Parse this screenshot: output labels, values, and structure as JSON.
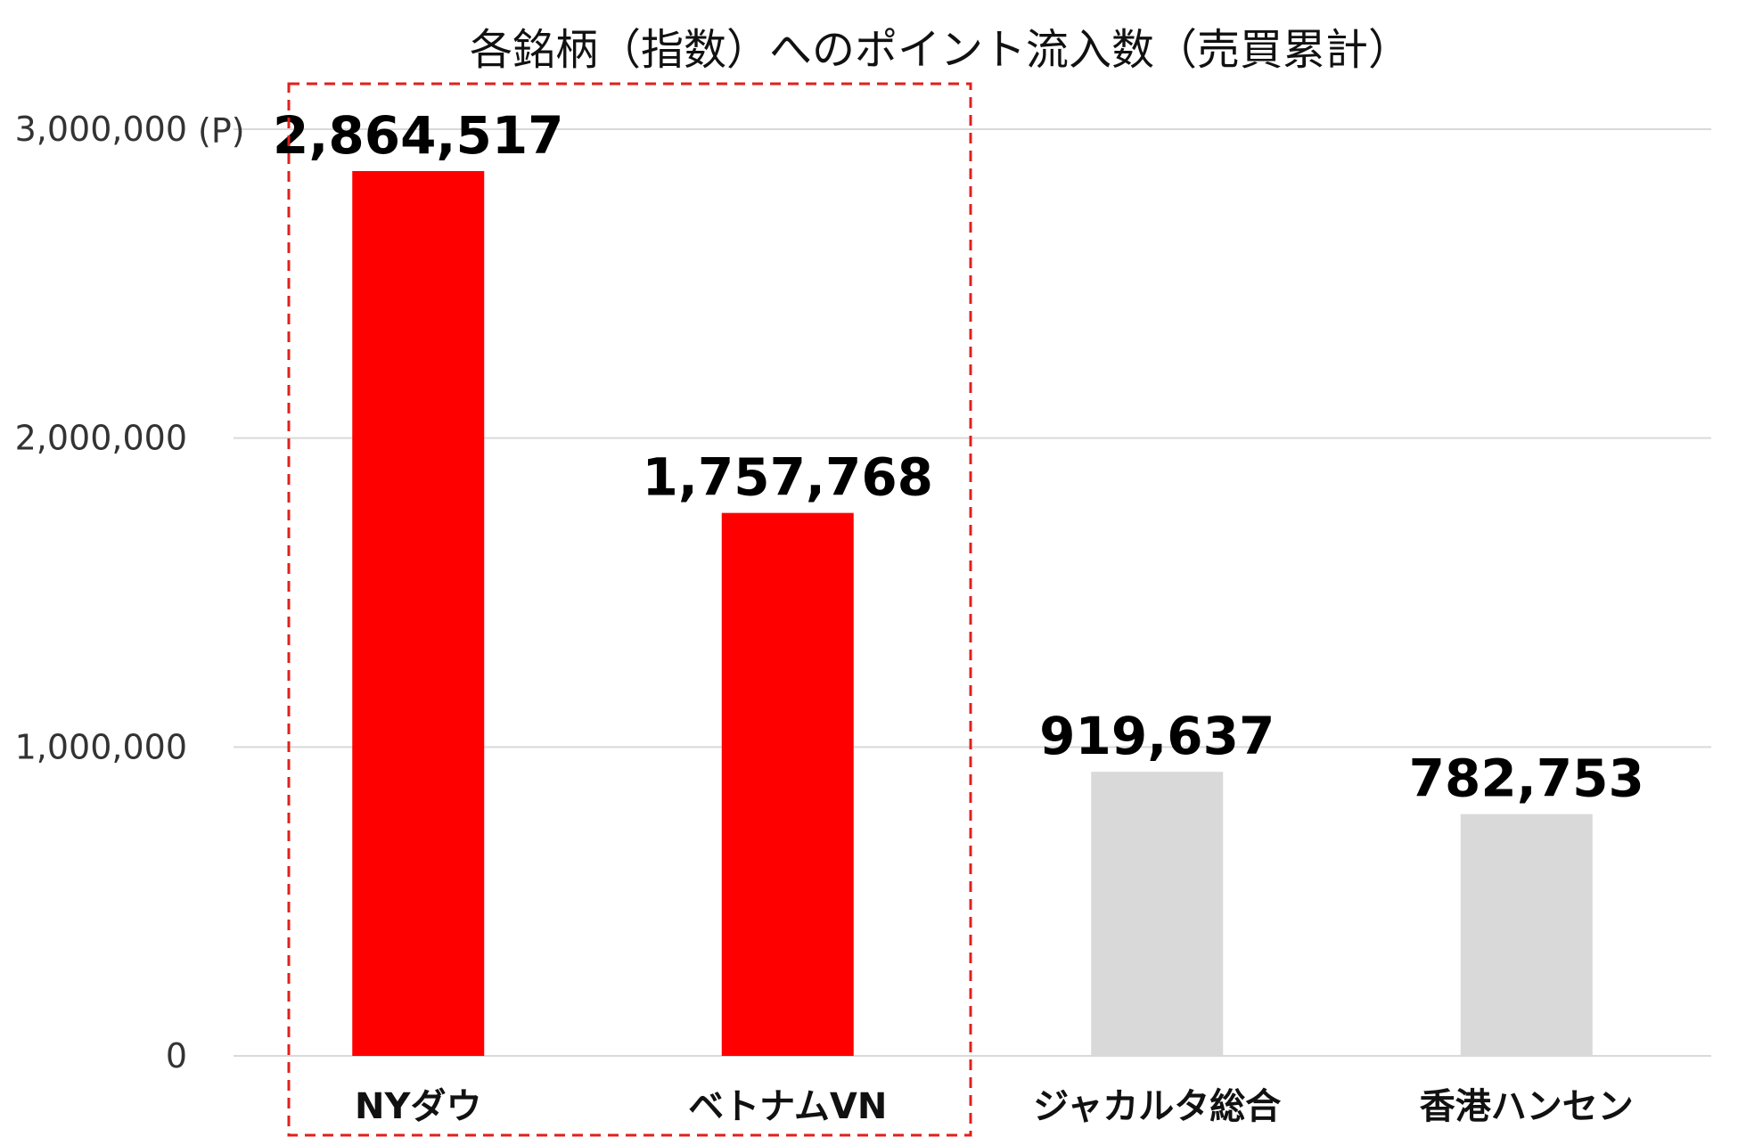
{
  "chart_data": {
    "type": "bar",
    "title": "各銘柄（指数）へのポイント流入数（売買累計）",
    "unit_label": "(P)",
    "categories": [
      "NYダウ",
      "ベトナムVN",
      "ジャカルタ総合",
      "香港ハンセン"
    ],
    "values": [
      2864517,
      1757768,
      919637,
      782753
    ],
    "data_labels": [
      "2,864,517",
      "1,757,768",
      "919,637",
      "782,753"
    ],
    "bar_colors": [
      "#ff0000",
      "#ff0000",
      "#d9d9d9",
      "#d9d9d9"
    ],
    "highlight_color": "#e0201c",
    "highlighted_categories": [
      "NYダウ",
      "ベトナムVN"
    ],
    "ylim": [
      0,
      3000000
    ],
    "yticks": [
      0,
      1000000,
      2000000,
      3000000
    ],
    "ytick_labels": [
      "0",
      "1,000,000",
      "2,000,000",
      "3,000,000"
    ],
    "grid": true,
    "legend": "none"
  }
}
